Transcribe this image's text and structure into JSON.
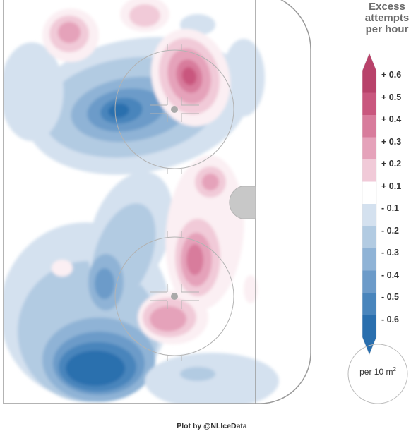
{
  "chart_data": {
    "type": "heatmap",
    "title": "Excess attempts per hour",
    "title_lines": [
      "Excess",
      "attempts",
      "per hour"
    ],
    "colorbar": {
      "ticks": [
        "+ 0.6",
        "+ 0.5",
        "+ 0.4",
        "+ 0.3",
        "+ 0.2",
        "+ 0.1",
        "- 0.1",
        "- 0.2",
        "- 0.3",
        "- 0.4",
        "- 0.5",
        "- 0.6"
      ],
      "values": [
        0.6,
        0.5,
        0.4,
        0.3,
        0.2,
        0.1,
        -0.1,
        -0.2,
        -0.3,
        -0.4,
        -0.5,
        -0.6
      ],
      "colors": [
        "#b8426a",
        "#c9577e",
        "#d87c9c",
        "#e5a2ba",
        "#f1cad8",
        "#ffffff",
        "#d4e1ef",
        "#b2cbe2",
        "#8fb3d6",
        "#6c9bc9",
        "#4985bc",
        "#2a6fae"
      ],
      "band_colors": [
        "#c9577e",
        "#d87c9c",
        "#e5a2ba",
        "#f1cad8",
        "#fbeff3",
        "#ffffff",
        "#e9f0f7",
        "#d4e1ef",
        "#b2cbe2",
        "#8fb3d6",
        "#6c9bc9",
        "#4985bc",
        "#2a6fae"
      ]
    },
    "colors": {
      "positive_max": "#b8426a",
      "negative_max": "#2a6fae",
      "rink_lines": "#b3b3b3",
      "crease": "#c8c8c8"
    },
    "area_unit": "per 10 m",
    "area_unit_exponent": "2",
    "hotspots": [
      {
        "sign": "negative",
        "level": 0.55,
        "region": "left faceoff circle, upper zone"
      },
      {
        "sign": "negative",
        "level": 0.6,
        "region": "lower-left corner"
      },
      {
        "sign": "positive",
        "level": 0.5,
        "region": "upper slot right of faceoff dot"
      },
      {
        "sign": "positive",
        "level": 0.5,
        "region": "lower slot, right of lower faceoff circle"
      },
      {
        "sign": "positive",
        "level": 0.4,
        "region": "below lower faceoff dot"
      },
      {
        "sign": "positive",
        "level": 0.4,
        "region": "top-left corner"
      },
      {
        "sign": "positive",
        "level": 0.3,
        "region": "near crease"
      }
    ]
  },
  "credit": "Plot by @NLIceData"
}
